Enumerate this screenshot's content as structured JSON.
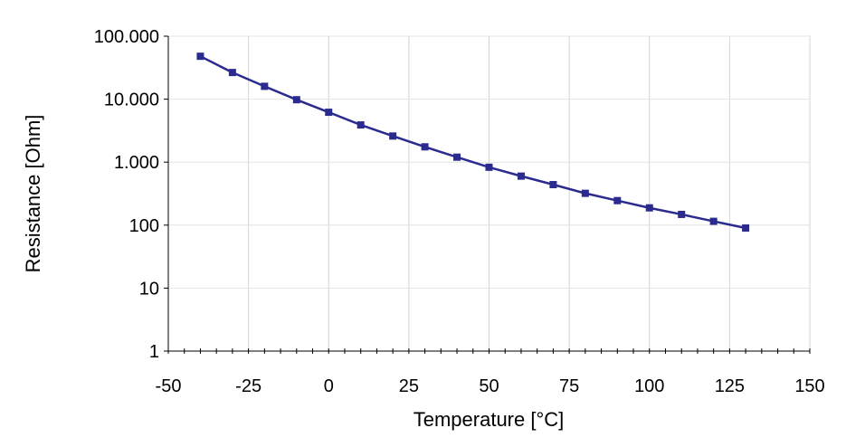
{
  "chart_data": {
    "type": "line",
    "title": "",
    "xlabel": "Temperature [°C]",
    "ylabel": "Resistance [Ohm]",
    "xlim": [
      -50,
      150
    ],
    "ylim": [
      1,
      100000
    ],
    "yscale": "log",
    "grid": true,
    "legend": "none",
    "x_ticks": [
      -50,
      -25,
      0,
      25,
      50,
      75,
      100,
      125,
      150
    ],
    "x_tick_labels": [
      "-50",
      "-25",
      "0",
      "25",
      "50",
      "75",
      "100",
      "125",
      "150"
    ],
    "y_ticks": [
      1,
      10,
      100,
      1000,
      10000,
      100000
    ],
    "y_tick_labels": [
      "1",
      "10",
      "100",
      "1.000",
      "10.000",
      "100.000"
    ],
    "series": [
      {
        "color": "#2b2b8f",
        "marker": "square",
        "x": [
          -40,
          -30,
          -20,
          -10,
          0,
          10,
          20,
          30,
          40,
          50,
          60,
          70,
          80,
          90,
          100,
          110,
          120,
          130
        ],
        "y": [
          48000,
          26500,
          16000,
          9800,
          6200,
          3900,
          2600,
          1750,
          1200,
          830,
          600,
          440,
          320,
          245,
          188,
          148,
          115,
          90
        ]
      }
    ]
  }
}
